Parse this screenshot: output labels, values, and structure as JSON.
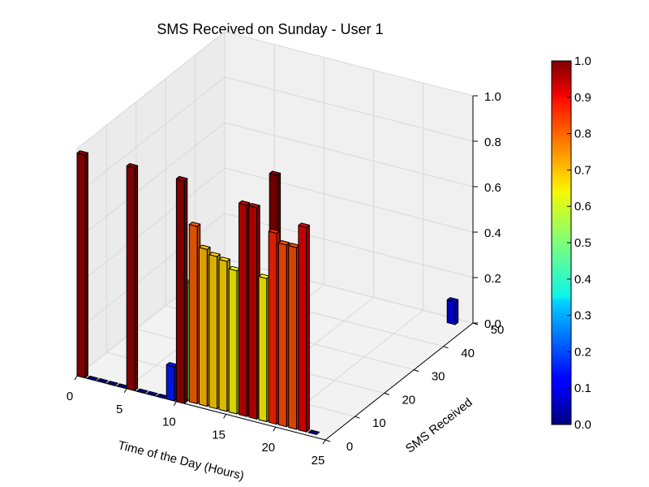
{
  "chart_data": {
    "type": "bar3d",
    "title": "SMS Received on Sunday - User 1",
    "xlabel": "Time of the Day (Hours)",
    "ylabel": "SMS Received",
    "zlabel": "",
    "xlim": [
      0,
      25
    ],
    "ylim": [
      0,
      50
    ],
    "zlim": [
      0,
      1.0
    ],
    "x_ticks": [
      "0",
      "5",
      "10",
      "15",
      "20",
      "25"
    ],
    "y_ticks": [
      "0",
      "10",
      "20",
      "30",
      "40",
      "50"
    ],
    "z_ticks": [
      "0.0",
      "0.2",
      "0.4",
      "0.6",
      "0.8",
      "1.0"
    ],
    "colorbar": {
      "min": 0.0,
      "max": 1.0,
      "ticks": [
        "0.0",
        "0.1",
        "0.2",
        "0.3",
        "0.4",
        "0.5",
        "0.6",
        "0.7",
        "0.8",
        "0.9",
        "1.0"
      ],
      "colormap": "jet"
    },
    "grid": true,
    "bars": [
      {
        "x": 0,
        "y": 0,
        "z": 0.98
      },
      {
        "x": 1,
        "y": 0,
        "z": 0.0
      },
      {
        "x": 2,
        "y": 0,
        "z": 0.0
      },
      {
        "x": 3,
        "y": 0,
        "z": 0.0
      },
      {
        "x": 4,
        "y": 0,
        "z": 0.0
      },
      {
        "x": 5,
        "y": 0,
        "z": 0.98
      },
      {
        "x": 6,
        "y": 0,
        "z": 0.0
      },
      {
        "x": 7,
        "y": 0,
        "z": 0.0
      },
      {
        "x": 8,
        "y": 0,
        "z": 0.0
      },
      {
        "x": 9,
        "y": 0,
        "z": 0.15
      },
      {
        "x": 10,
        "y": 0,
        "z": 0.98
      },
      {
        "x": 10,
        "y": 1,
        "z": 0.52
      },
      {
        "x": 11,
        "y": 1,
        "z": 0.78
      },
      {
        "x": 12,
        "y": 1,
        "z": 0.69
      },
      {
        "x": 13,
        "y": 1,
        "z": 0.67
      },
      {
        "x": 14,
        "y": 1,
        "z": 0.66
      },
      {
        "x": 15,
        "y": 1,
        "z": 0.63
      },
      {
        "x": 16,
        "y": 1,
        "z": 0.93
      },
      {
        "x": 17,
        "y": 1,
        "z": 0.93
      },
      {
        "x": 17,
        "y": 8,
        "z": 1.0
      },
      {
        "x": 18,
        "y": 1,
        "z": 0.63
      },
      {
        "x": 19,
        "y": 1,
        "z": 0.84
      },
      {
        "x": 20,
        "y": 1,
        "z": 0.8
      },
      {
        "x": 21,
        "y": 1,
        "z": 0.8
      },
      {
        "x": 22,
        "y": 1,
        "z": 0.9
      },
      {
        "x": 23,
        "y": 1,
        "z": 0.0
      },
      {
        "x": 23,
        "y": 48,
        "z": 0.1
      }
    ]
  }
}
